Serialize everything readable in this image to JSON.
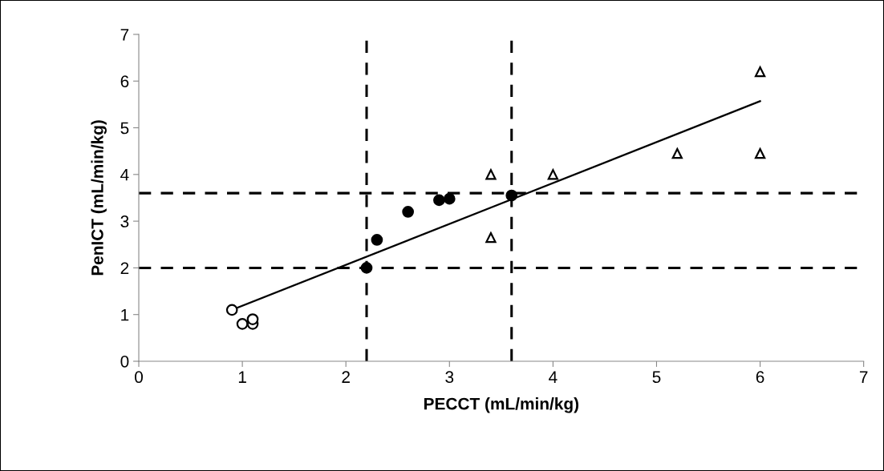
{
  "chart_data": {
    "type": "scatter",
    "xlabel": "PECCT (mL/min/kg)",
    "ylabel": "PenICT (mL/min/kg)",
    "xlim": [
      0,
      7
    ],
    "ylim": [
      0,
      7
    ],
    "xticks": [
      0,
      1,
      2,
      3,
      4,
      5,
      6,
      7
    ],
    "yticks": [
      0,
      1,
      2,
      3,
      4,
      5,
      6,
      7
    ],
    "grid": false,
    "legend": false,
    "series": [
      {
        "color": "#ffffff",
        "marker": "circle",
        "x": [
          0.9,
          1.0,
          1.1,
          1.1
        ],
        "values": [
          1.1,
          0.8,
          0.8,
          0.9
        ]
      },
      {
        "color": "#000000",
        "marker": "circle",
        "x": [
          2.2,
          2.3,
          2.6,
          2.9,
          3.0,
          3.6
        ],
        "values": [
          2.0,
          2.6,
          3.2,
          3.45,
          3.48,
          3.55
        ]
      },
      {
        "color": "#ffffff",
        "marker": "triangle",
        "x": [
          3.4,
          3.4,
          4.0,
          5.2,
          6.0,
          6.0
        ],
        "values": [
          4.0,
          2.65,
          4.0,
          4.45,
          4.45,
          6.2
        ]
      },
      {
        "type": "line",
        "color": "#000000",
        "marker": "none",
        "line_style": "solid",
        "x": [
          0.9,
          6.0
        ],
        "values": [
          1.1,
          5.57
        ]
      }
    ],
    "ref_lines": [
      {
        "axis": "x",
        "value": 2.2,
        "color": "#000000",
        "line_style": "dashed"
      },
      {
        "axis": "x",
        "value": 3.6,
        "color": "#000000",
        "line_style": "dashed"
      },
      {
        "axis": "y",
        "value": 2.0,
        "color": "#000000",
        "line_style": "dashed"
      },
      {
        "axis": "y",
        "value": 3.6,
        "color": "#000000",
        "line_style": "dashed"
      }
    ]
  }
}
